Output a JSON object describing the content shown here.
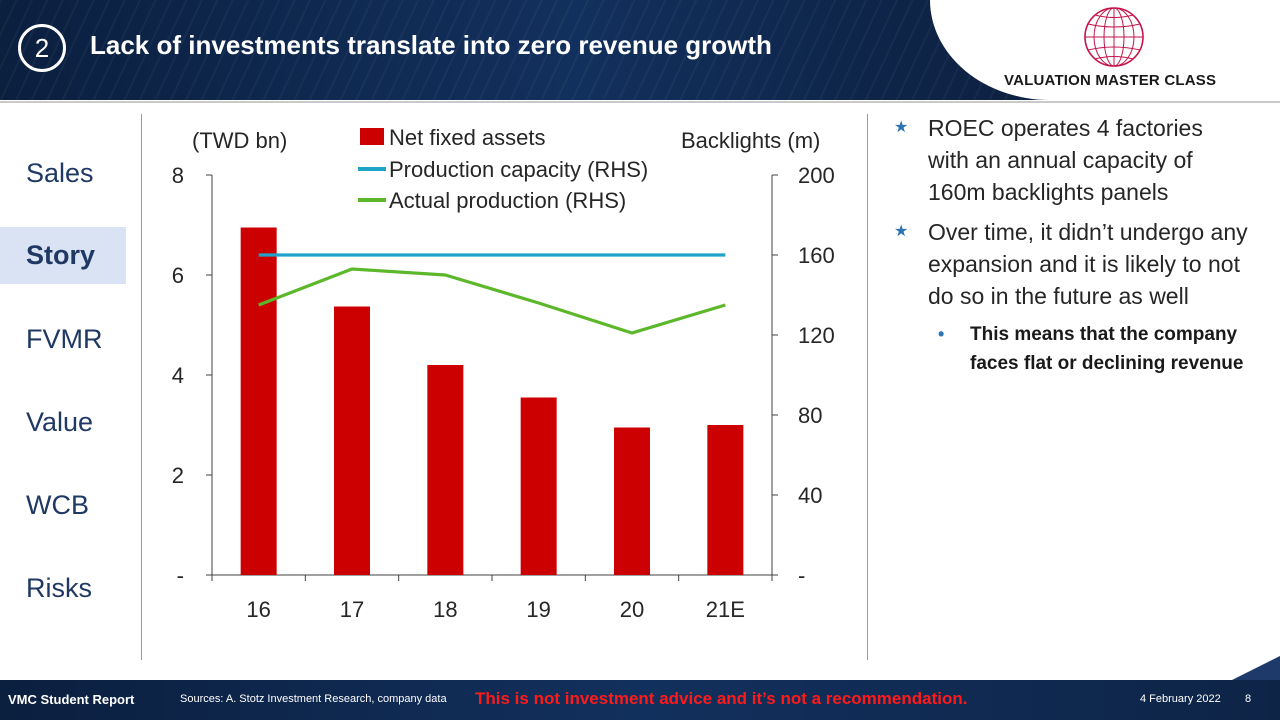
{
  "header": {
    "slide_number": "2",
    "title": "Lack of investments translate into zero revenue growth",
    "logo_text": "VALUATION MASTER CLASS"
  },
  "nav": {
    "items": [
      {
        "label": "Sales",
        "active": false
      },
      {
        "label": "Story",
        "active": true
      },
      {
        "label": "FVMR",
        "active": false
      },
      {
        "label": "Value",
        "active": false
      },
      {
        "label": "WCB",
        "active": false
      },
      {
        "label": "Risks",
        "active": false
      }
    ]
  },
  "bullets": {
    "point1": "ROEC operates 4 factories with an annual capacity of 160m backlights panels",
    "point2": "Over time, it didn’t undergo any expansion and it is likely to not do so in the future as well",
    "sub_point": "This means that the company faces flat or declining revenue"
  },
  "footer": {
    "left": "VMC Student Report",
    "sources": "Sources: A. Stotz Investment Research, company data",
    "disclaimer": "This is not investment advice and it’s not a recommendation.",
    "date": "4 February 2022",
    "page": "8"
  },
  "colors": {
    "bar": "#cc0000",
    "capacity": "#1fa3c9",
    "production": "#5cb82a",
    "nav_text": "#1f3864",
    "nav_active_bg": "#dae3f3",
    "bullet_accent": "#2e75b6",
    "disclaimer": "#ff1a1a"
  },
  "chart_data": {
    "type": "bar",
    "categories": [
      "16",
      "17",
      "18",
      "19",
      "20",
      "21E"
    ],
    "left_axis": {
      "label": "(TWD bn)",
      "ticks": [
        "-",
        "2",
        "4",
        "6",
        "8"
      ],
      "ylim": [
        0,
        8
      ]
    },
    "right_axis": {
      "label": "Backlights (m)",
      "ticks": [
        "-",
        "40",
        "80",
        "120",
        "160",
        "200"
      ],
      "ylim": [
        0,
        200
      ]
    },
    "series": [
      {
        "name": "Net fixed assets",
        "type": "bar",
        "axis": "left",
        "values": [
          6.95,
          5.37,
          4.2,
          3.55,
          2.95,
          3.0
        ]
      },
      {
        "name": "Production capacity (RHS)",
        "type": "line",
        "axis": "right",
        "values": [
          160,
          160,
          160,
          160,
          160,
          160
        ]
      },
      {
        "name": "Actual production (RHS)",
        "type": "line",
        "axis": "right",
        "values": [
          135,
          153,
          150,
          136,
          121,
          135
        ]
      }
    ],
    "legend_position": "top"
  }
}
